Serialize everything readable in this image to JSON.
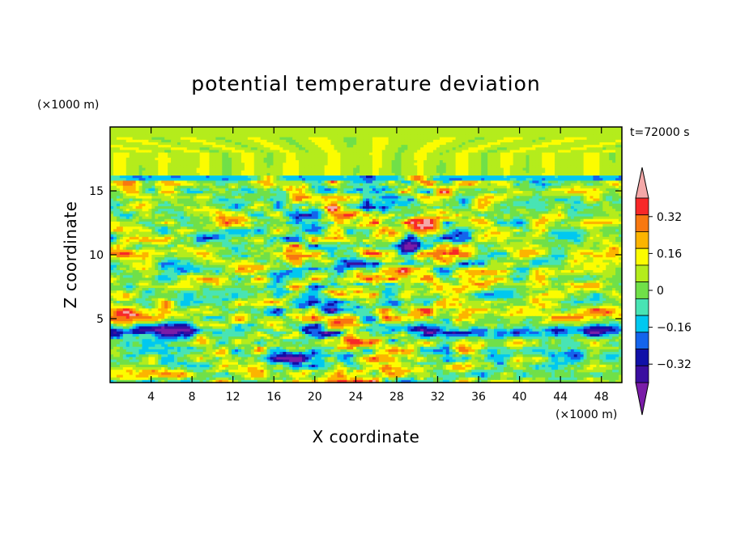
{
  "chart_data": {
    "type": "heatmap",
    "title": "potential temperature deviation",
    "xlabel": "X coordinate",
    "ylabel": "Z coordinate",
    "x_unit": "(×1000 m)",
    "y_unit": "(×1000 m)",
    "time_label": "t=72000 s",
    "xlim": [
      0,
      50
    ],
    "ylim": [
      0,
      20
    ],
    "x_ticks": [
      4,
      8,
      12,
      16,
      20,
      24,
      28,
      32,
      36,
      40,
      44,
      48
    ],
    "y_ticks": [
      5,
      10,
      15
    ],
    "colorbar": {
      "levels": [
        -0.48,
        -0.4,
        -0.32,
        -0.24,
        -0.16,
        -0.08,
        0,
        0.08,
        0.16,
        0.24,
        0.32,
        0.4,
        0.48
      ],
      "tick_values": [
        -0.32,
        -0.16,
        0,
        0.16,
        0.32
      ],
      "tick_labels": [
        "−0.32",
        "−0.16",
        "0",
        "0.16",
        "0.32"
      ],
      "colors_low_to_high": [
        "#7a1ca8",
        "#3a0ea0",
        "#1010a8",
        "#1464ec",
        "#00c8f0",
        "#48e4b4",
        "#70e048",
        "#b4ec1c",
        "#fcfc00",
        "#fcb400",
        "#f87810",
        "#f82828",
        "#f4a8a8"
      ]
    },
    "bands": [
      {
        "z_range": [
          0,
          1.5
        ],
        "tendency": "mixed, yellow patches near x 16-28"
      },
      {
        "z_range": [
          1.5,
          3
        ],
        "tendency": "negative cores near x 16-24, x 46-50"
      },
      {
        "z_range": [
          3.5,
          4.5
        ],
        "tendency": "strong negative layer across domain"
      },
      {
        "z_range": [
          5,
          6
        ],
        "tendency": "positive layer (orange) at edges"
      },
      {
        "z_range": [
          8,
          12
        ],
        "tendency": "strong alternating positive/negative cells"
      },
      {
        "z_range": [
          15.5,
          16
        ],
        "tendency": "sharp negative/positive interface"
      },
      {
        "z_range": [
          16,
          20
        ],
        "tendency": "weak positive, green gravity-wave rays"
      }
    ]
  }
}
